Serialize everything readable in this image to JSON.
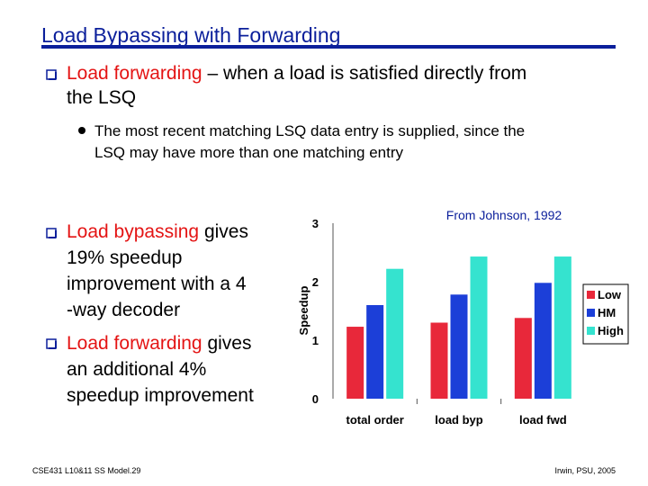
{
  "slide": {
    "title": "Load Bypassing with Forwarding",
    "bullet1": {
      "highlight": "Load forwarding",
      "text_line1": " – when a load is satisfied directly from",
      "text_line2": "the LSQ"
    },
    "sub_bullet": {
      "line1": "The most recent matching LSQ data entry is supplied, since the",
      "line2": "LSQ may have more than one matching entry"
    },
    "bullet2": {
      "highlight": "Load bypassing",
      "line1_rest": " gives",
      "line2": "19% speedup",
      "line3": "improvement with a  4",
      "line4": "-way decoder"
    },
    "bullet3": {
      "highlight": "Load forwarding",
      "line1_rest": " gives",
      "line2": "an additional 4%",
      "line3": "speedup improvement"
    },
    "footer_left": "CSE431  L10&11 SS Model.29",
    "footer_right": "Irwin, PSU, 2005",
    "colors": {
      "title": "#0b1f9b",
      "highlight": "#e41414",
      "chart_note": "#0b1f9b"
    }
  },
  "chart_data": {
    "type": "bar",
    "annotation": "From Johnson, 1992",
    "ylabel": "Speedup",
    "xlabel": "",
    "ylim": [
      0,
      3
    ],
    "yticks": [
      "0",
      "1",
      "2",
      "3"
    ],
    "categories": [
      "total order",
      "load byp",
      "load fwd"
    ],
    "series": [
      {
        "name": "Low",
        "color": "#e8283a",
        "values": [
          1.23,
          1.3,
          1.38
        ]
      },
      {
        "name": "HM",
        "color": "#1c3fd8",
        "values": [
          1.6,
          1.78,
          1.98
        ]
      },
      {
        "name": "High",
        "color": "#35e3cf",
        "values": [
          2.22,
          2.43,
          2.43
        ]
      }
    ],
    "legend_position": "right"
  }
}
